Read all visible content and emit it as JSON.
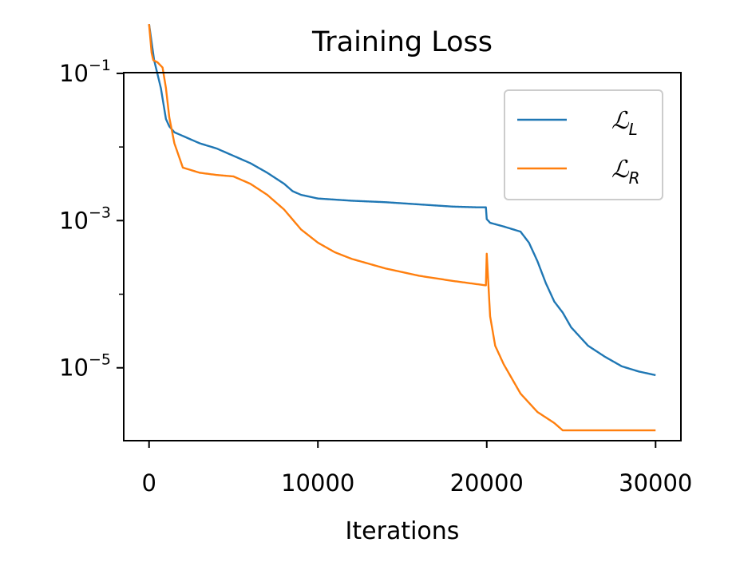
{
  "chart_data": {
    "type": "line",
    "title": "Training Loss",
    "xlabel": "Iterations",
    "ylabel": "",
    "yscale": "log",
    "xlim": [
      -1500,
      31500
    ],
    "ylim_log10": [
      -5.99,
      -0.99
    ],
    "xticks": [
      {
        "value": 0,
        "label": "0"
      },
      {
        "value": 10000,
        "label": "10000"
      },
      {
        "value": 20000,
        "label": "20000"
      },
      {
        "value": 30000,
        "label": "30000"
      }
    ],
    "yticks": [
      {
        "exp": -1,
        "base": "10",
        "sup": "−1"
      },
      {
        "exp": -3,
        "base": "10",
        "sup": "−3"
      },
      {
        "exp": -5,
        "base": "10",
        "sup": "−5"
      }
    ],
    "legend": {
      "position": "top-right",
      "entries": [
        {
          "main": "ℒ",
          "sub": "L",
          "color": "#1f77b4"
        },
        {
          "main": "ℒ",
          "sub": "R",
          "color": "#ff7f0e"
        }
      ]
    },
    "series": [
      {
        "name": "L_L",
        "color": "#1f77b4",
        "x": [
          0,
          300,
          700,
          1000,
          1200,
          1500,
          2000,
          3000,
          4000,
          5000,
          6000,
          7000,
          8000,
          8500,
          9000,
          10000,
          12000,
          14000,
          16000,
          18000,
          19500,
          19950,
          20000,
          20200,
          21000,
          22000,
          22500,
          23000,
          23500,
          24000,
          24500,
          25000,
          26000,
          27000,
          28000,
          29000,
          30000
        ],
        "log10_y": [
          -0.33,
          -0.82,
          -1.2,
          -1.62,
          -1.72,
          -1.8,
          -1.85,
          -1.95,
          -2.02,
          -2.12,
          -2.22,
          -2.35,
          -2.5,
          -2.6,
          -2.65,
          -2.7,
          -2.73,
          -2.75,
          -2.78,
          -2.81,
          -2.82,
          -2.82,
          -2.98,
          -3.03,
          -3.08,
          -3.15,
          -3.3,
          -3.55,
          -3.85,
          -4.1,
          -4.25,
          -4.45,
          -4.7,
          -4.85,
          -4.98,
          -5.05,
          -5.1
        ],
        "noise": [
          {
            "start": 7500,
            "end": 19950,
            "spike": 0.28,
            "step": 200
          }
        ]
      },
      {
        "name": "L_R",
        "color": "#ff7f0e",
        "x": [
          0,
          150,
          250,
          500,
          800,
          1000,
          1200,
          1500,
          2000,
          3000,
          4000,
          5000,
          6000,
          7000,
          8000,
          9000,
          10000,
          11000,
          12000,
          14000,
          16000,
          18000,
          19950,
          20000,
          20200,
          20500,
          21000,
          22000,
          23000,
          24000,
          24500,
          26000,
          28000,
          30000
        ],
        "log10_y": [
          -0.33,
          -0.72,
          -0.82,
          -0.85,
          -0.92,
          -1.2,
          -1.6,
          -1.95,
          -2.28,
          -2.35,
          -2.38,
          -2.4,
          -2.5,
          -2.65,
          -2.85,
          -3.12,
          -3.3,
          -3.43,
          -3.52,
          -3.65,
          -3.75,
          -3.82,
          -3.88,
          -3.45,
          -4.3,
          -4.7,
          -4.95,
          -5.35,
          -5.6,
          -5.75,
          -5.85,
          -5.85,
          -5.85,
          -5.85
        ],
        "noise": [
          {
            "start": 8500,
            "end": 19950,
            "spike": 0.3,
            "step": 160
          }
        ]
      }
    ]
  }
}
